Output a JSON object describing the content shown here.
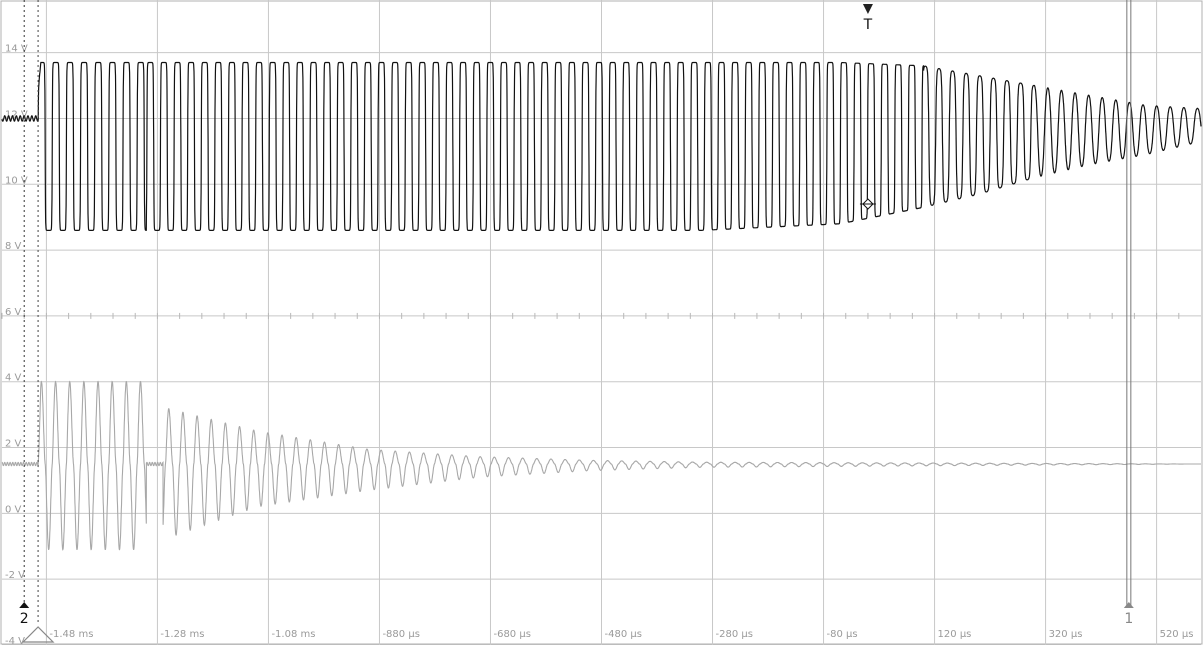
{
  "chart_data": {
    "type": "line",
    "title": "",
    "xlabel": "",
    "ylabel": "",
    "x_unit": "ms",
    "xlim": [
      -1.56,
      0.6
    ],
    "ylim": [
      -4,
      15.6
    ],
    "grid": true,
    "y_tick_labels": [
      "14 V",
      "12 V",
      "10 V",
      "8 V",
      "6 V",
      "4 V",
      "2 V",
      "0 V",
      "-2 V",
      "-4 V"
    ],
    "y_tick_values": [
      14,
      12,
      10,
      8,
      6,
      4,
      2,
      0,
      -2,
      -4
    ],
    "x_tick_labels": [
      "-1.48 ms",
      "-1.28 ms",
      "-1.08 ms",
      "-880 µs",
      "-680 µs",
      "-480 µs",
      "-280 µs",
      "-80 µs",
      "120 µs",
      "320 µs",
      "520 µs"
    ],
    "x_tick_values": [
      -1.48,
      -1.28,
      -1.08,
      -0.88,
      -0.68,
      -0.48,
      -0.28,
      -0.08,
      0.12,
      0.32,
      0.52
    ],
    "markers": {
      "trigger_label": "T",
      "trigger_x": -0.0,
      "cursor1_label": "1",
      "cursor1_x": 0.47,
      "cursor2_label": "2",
      "cursor2_x": -1.52
    },
    "series": [
      {
        "color": "#111111",
        "description_points": {
          "x": [
            -1.56,
            -1.5,
            -1.49,
            -1.3,
            -1.27,
            -0.6,
            -0.3,
            -0.05,
            0.1,
            0.2,
            0.3,
            0.4,
            0.5,
            0.6
          ],
          "y_high": [
            12.0,
            12.0,
            13.7,
            13.7,
            13.7,
            13.7,
            13.7,
            13.7,
            13.6,
            13.3,
            13.0,
            12.7,
            12.4,
            12.3
          ],
          "y_low": [
            12.0,
            12.0,
            8.6,
            8.6,
            8.6,
            8.6,
            8.6,
            8.8,
            9.3,
            9.7,
            10.2,
            10.6,
            10.9,
            11.3
          ]
        }
      },
      {
        "color": "#a8a8a8",
        "description_points": {
          "x": [
            -1.56,
            -1.5,
            -1.49,
            -1.3,
            -1.27,
            -1.1,
            -0.9,
            -0.7,
            -0.5,
            -0.3,
            0.6
          ],
          "y_high": [
            1.5,
            1.5,
            6.0,
            6.0,
            4.6,
            3.3,
            2.3,
            1.9,
            1.7,
            1.6,
            1.5
          ],
          "y_low": [
            1.5,
            1.5,
            -1.1,
            -1.1,
            -0.8,
            0.2,
            0.7,
            1.1,
            1.3,
            1.4,
            1.5
          ]
        }
      }
    ]
  }
}
